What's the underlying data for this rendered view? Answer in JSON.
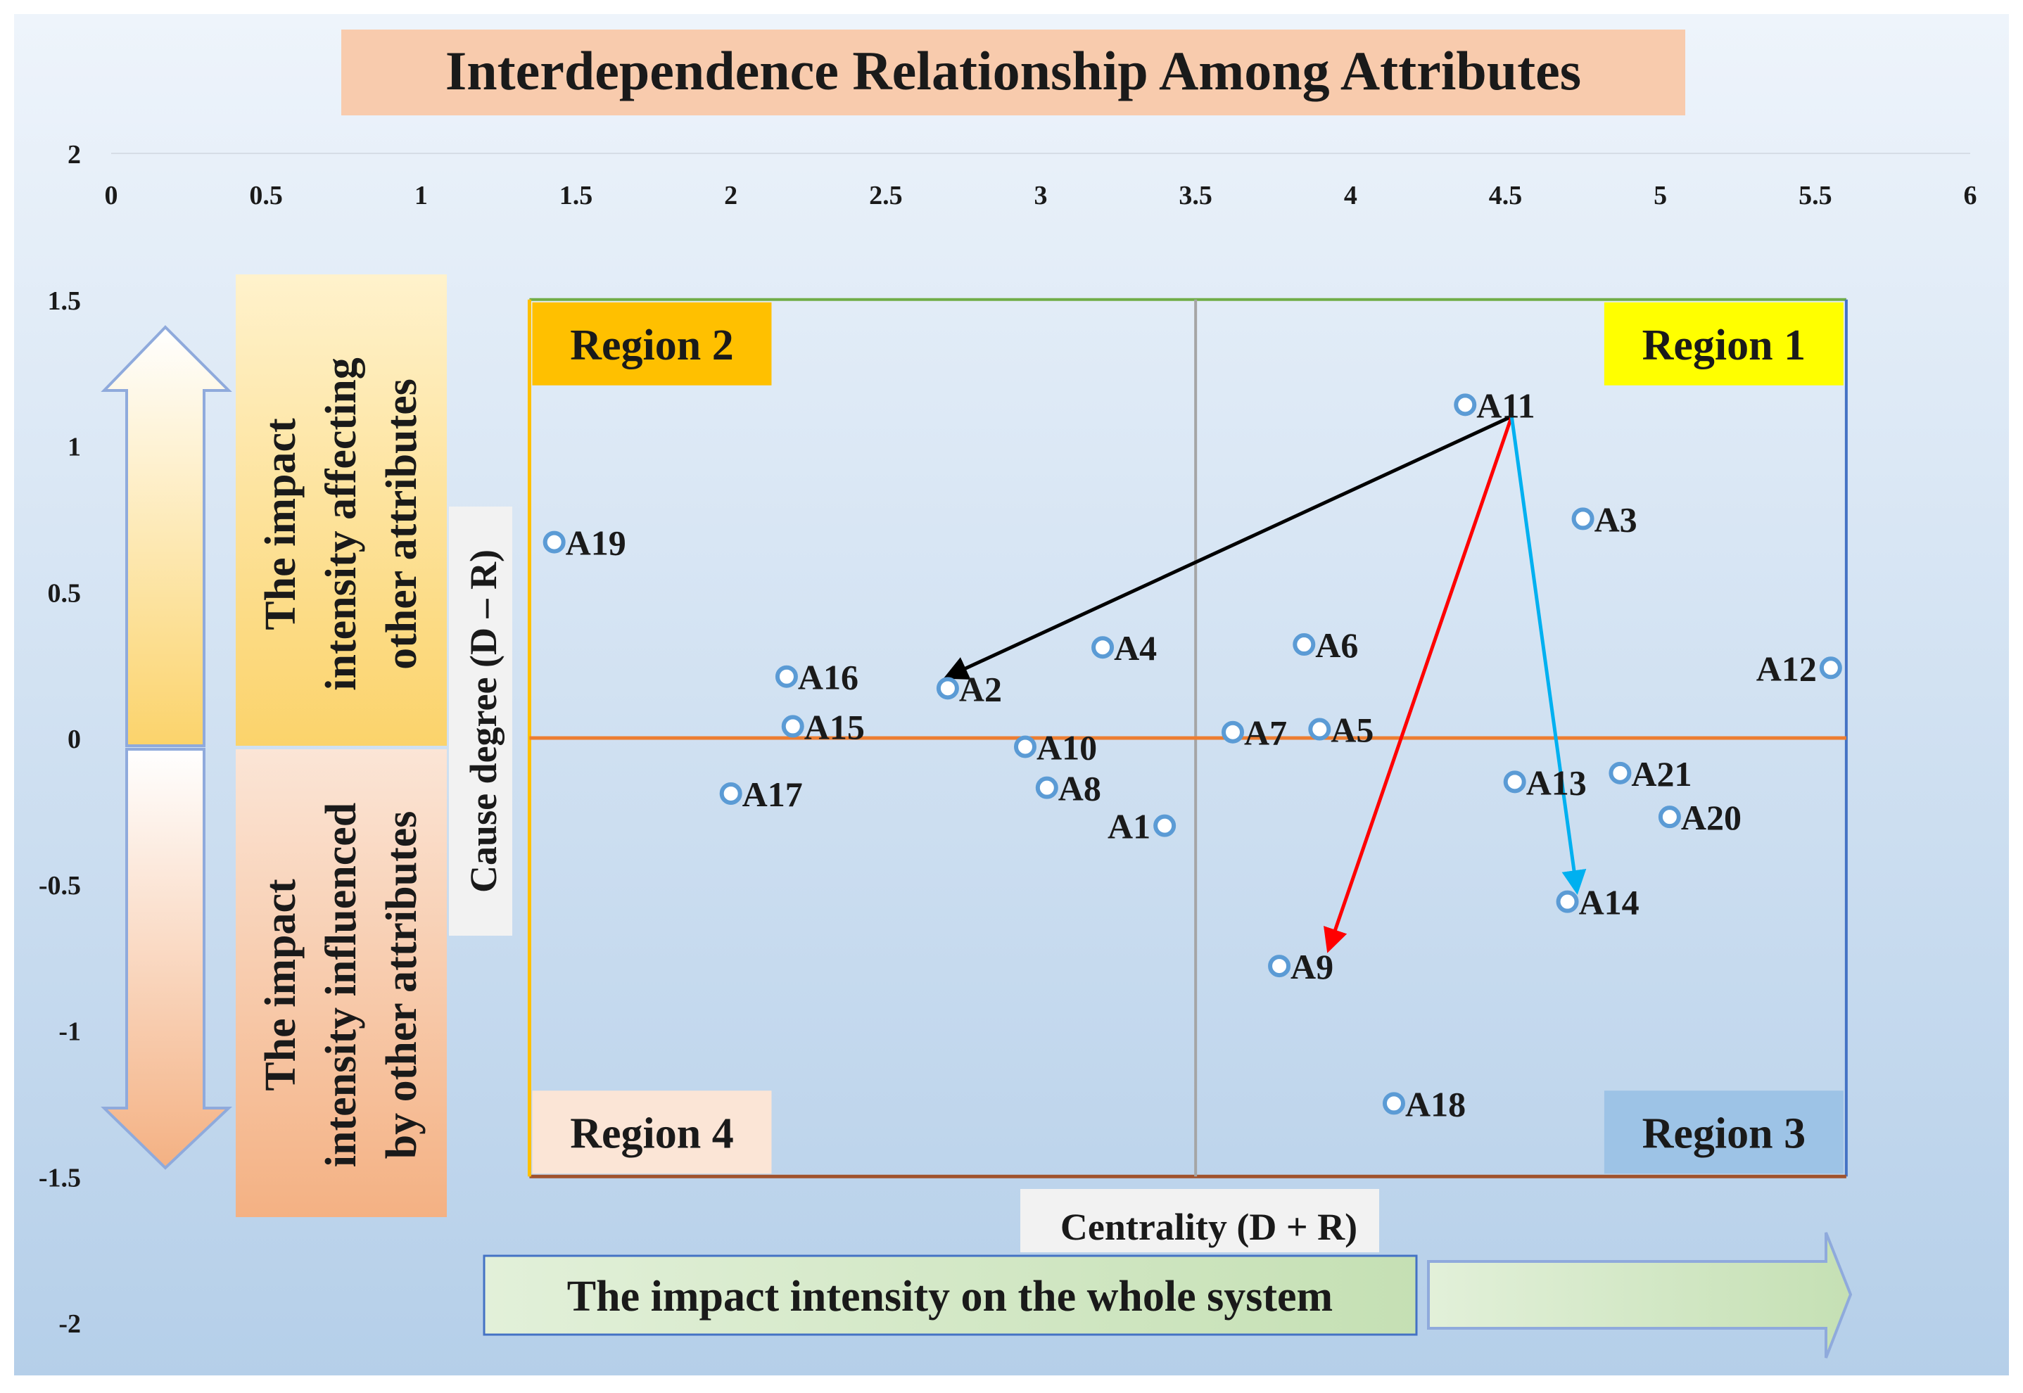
{
  "chart_data": {
    "type": "scatter",
    "title": "Interdependence Relationship Among Attributes",
    "xlabel": "Centrality (D + R)",
    "ylabel": "Cause degree (D – R)",
    "x_ticks": [
      "0",
      "0.5",
      "1",
      "1.5",
      "2",
      "2.5",
      "3",
      "3.5",
      "4",
      "4.5",
      "5",
      "5.5",
      "6"
    ],
    "y_ticks": [
      "2",
      "1.5",
      "1",
      "0.5",
      "0",
      "-0.5",
      "-1",
      "-1.5",
      "-2"
    ],
    "xlim": [
      0,
      6
    ],
    "ylim": [
      -2,
      2
    ],
    "quadrant_axes": {
      "x_split": 3.5,
      "y_split": 0
    },
    "region_bounds": {
      "x": [
        1.35,
        5.6
      ],
      "y": [
        -1.5,
        1.5
      ]
    },
    "regions": [
      {
        "label": "Region 1",
        "position": "top-right",
        "color": "#ffff00"
      },
      {
        "label": "Region 2",
        "position": "top-left",
        "color": "#ffc000"
      },
      {
        "label": "Region 3",
        "position": "bottom-right",
        "color": "#9dc3e6"
      },
      {
        "label": "Region 4",
        "position": "bottom-left",
        "color": "#fbe5d6"
      }
    ],
    "points": [
      {
        "label": "A1",
        "x": 3.4,
        "y": -0.3,
        "label_side": "left"
      },
      {
        "label": "A2",
        "x": 2.7,
        "y": 0.17
      },
      {
        "label": "A3",
        "x": 4.75,
        "y": 0.75
      },
      {
        "label": "A4",
        "x": 3.2,
        "y": 0.31
      },
      {
        "label": "A5",
        "x": 3.9,
        "y": 0.03
      },
      {
        "label": "A6",
        "x": 3.85,
        "y": 0.32
      },
      {
        "label": "A7",
        "x": 3.62,
        "y": 0.02
      },
      {
        "label": "A8",
        "x": 3.02,
        "y": -0.17
      },
      {
        "label": "A9",
        "x": 3.77,
        "y": -0.78
      },
      {
        "label": "A10",
        "x": 2.95,
        "y": -0.03
      },
      {
        "label": "A11",
        "x": 4.37,
        "y": 1.14
      },
      {
        "label": "A12",
        "x": 5.55,
        "y": 0.24,
        "label_side": "left"
      },
      {
        "label": "A13",
        "x": 4.53,
        "y": -0.15
      },
      {
        "label": "A14",
        "x": 4.7,
        "y": -0.56
      },
      {
        "label": "A15",
        "x": 2.2,
        "y": 0.04
      },
      {
        "label": "A16",
        "x": 2.18,
        "y": 0.21
      },
      {
        "label": "A17",
        "x": 2.0,
        "y": -0.19
      },
      {
        "label": "A18",
        "x": 4.14,
        "y": -1.25
      },
      {
        "label": "A19",
        "x": 1.43,
        "y": 0.67
      },
      {
        "label": "A20",
        "x": 5.03,
        "y": -0.27
      },
      {
        "label": "A21",
        "x": 4.87,
        "y": -0.12
      }
    ],
    "arrows": [
      {
        "from": [
          4.52,
          1.1
        ],
        "to": [
          2.7,
          0.21
        ],
        "color": "#000000"
      },
      {
        "from": [
          4.52,
          1.1
        ],
        "to": [
          3.93,
          -0.72
        ],
        "color": "#ff0000"
      },
      {
        "from": [
          4.52,
          1.1
        ],
        "to": [
          4.73,
          -0.52
        ],
        "color": "#00b0f0"
      }
    ],
    "annotations": {
      "up_text": [
        "The impact",
        "intensity affecting",
        "other attributes"
      ],
      "down_text": [
        "The impact",
        "intensity influenced",
        "by other attributes"
      ],
      "system_text": "The impact intensity on the whole system"
    },
    "grid": false,
    "legend": "none"
  },
  "colors": {
    "x_axis_line": "#ed7d31",
    "y_axis_line": "#a5a5a5",
    "point_stroke": "#5b9bd5",
    "title_bg": "#f8cbad"
  }
}
